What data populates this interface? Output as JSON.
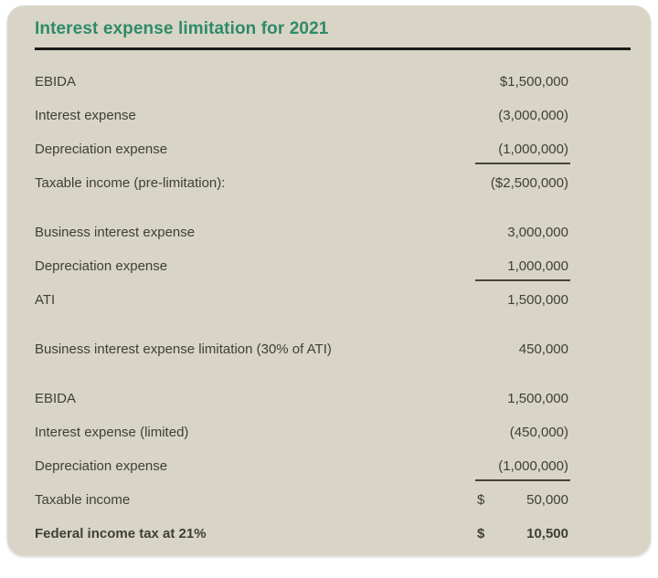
{
  "page": {
    "title": "Interest expense limitation for 2021"
  },
  "colors": {
    "card_background": "#d8d5c6",
    "title_green": "#2f8a6a",
    "text": "#403e38",
    "rule_black": "#1a1a18"
  },
  "table": {
    "sections": [
      {
        "rows": [
          {
            "label": "EBIDA",
            "amount": "$1,500,000",
            "underline": false,
            "bold": false,
            "currency": ""
          },
          {
            "label": "Interest expense",
            "amount": "(3,000,000)",
            "underline": false,
            "bold": false,
            "currency": ""
          },
          {
            "label": "Depreciation expense",
            "amount": "(1,000,000)",
            "underline": true,
            "bold": false,
            "currency": ""
          },
          {
            "label": "Taxable income (pre-limitation):",
            "amount": "($2,500,000)",
            "underline": false,
            "bold": false,
            "currency": ""
          }
        ]
      },
      {
        "rows": [
          {
            "label": "Business interest expense",
            "amount": "3,000,000",
            "underline": false,
            "bold": false,
            "currency": ""
          },
          {
            "label": "Depreciation expense",
            "amount": "1,000,000",
            "underline": true,
            "bold": false,
            "currency": ""
          },
          {
            "label": "ATI",
            "amount": "1,500,000",
            "underline": false,
            "bold": false,
            "currency": ""
          }
        ]
      },
      {
        "rows": [
          {
            "label": "Business interest expense limitation (30% of ATI)",
            "amount": "450,000",
            "underline": false,
            "bold": false,
            "currency": ""
          }
        ]
      },
      {
        "rows": [
          {
            "label": "EBIDA",
            "amount": "1,500,000",
            "underline": false,
            "bold": false,
            "currency": ""
          },
          {
            "label": "Interest expense (limited)",
            "amount": "(450,000)",
            "underline": false,
            "bold": false,
            "currency": ""
          },
          {
            "label": "Depreciation expense",
            "amount": "(1,000,000)",
            "underline": true,
            "bold": false,
            "currency": ""
          },
          {
            "label": "Taxable income",
            "amount": "50,000",
            "underline": false,
            "bold": false,
            "currency": "$"
          },
          {
            "label": "Federal income tax at 21%",
            "amount": "10,500",
            "underline": false,
            "bold": true,
            "currency": "$"
          }
        ]
      }
    ]
  }
}
